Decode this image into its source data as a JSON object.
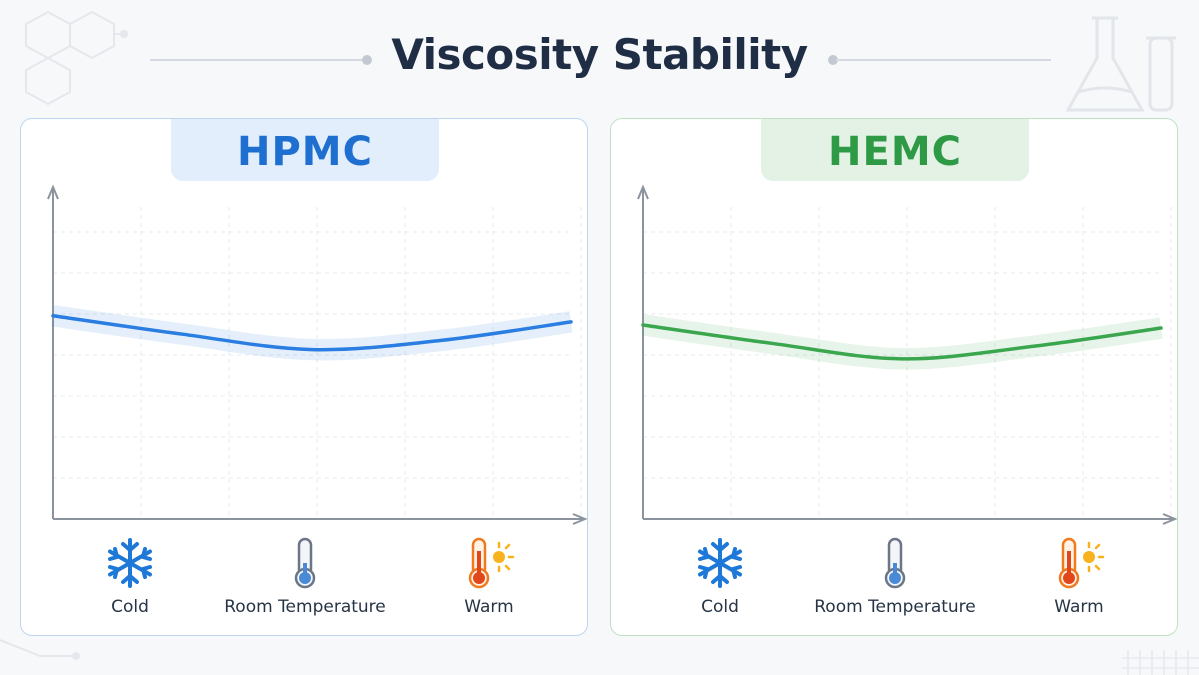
{
  "title": "Viscosity Stability",
  "icons": {
    "cold": "snowflake-icon",
    "room": "thermometer-icon",
    "warm": "thermometer-sun-icon"
  },
  "colors": {
    "hpmc": "#2a7de1",
    "hemc": "#3aa64e",
    "cold_icon": "#1e78d8",
    "room_icon": "#4a89d8",
    "warm_icon": "#f07a1e"
  },
  "chart_data": [
    {
      "type": "line",
      "panel_title": "HPMC",
      "categories": [
        "Cold",
        "Room Temperature",
        "Warm"
      ],
      "x": [
        0,
        0.25,
        0.5,
        0.75,
        1.0
      ],
      "series": [
        {
          "values": [
            0.66,
            0.6,
            0.55,
            0.58,
            0.64
          ]
        }
      ],
      "band": 0.025,
      "ylim": [
        0,
        1
      ],
      "xlabel": "",
      "ylabel": "",
      "grid": true
    },
    {
      "type": "line",
      "panel_title": "HEMC",
      "categories": [
        "Cold",
        "Room Temperature",
        "Warm"
      ],
      "x": [
        0,
        0.25,
        0.5,
        0.75,
        1.0
      ],
      "series": [
        {
          "values": [
            0.63,
            0.57,
            0.52,
            0.56,
            0.62
          ]
        }
      ],
      "band": 0.025,
      "ylim": [
        0,
        1
      ],
      "xlabel": "",
      "ylabel": "",
      "grid": true
    }
  ]
}
